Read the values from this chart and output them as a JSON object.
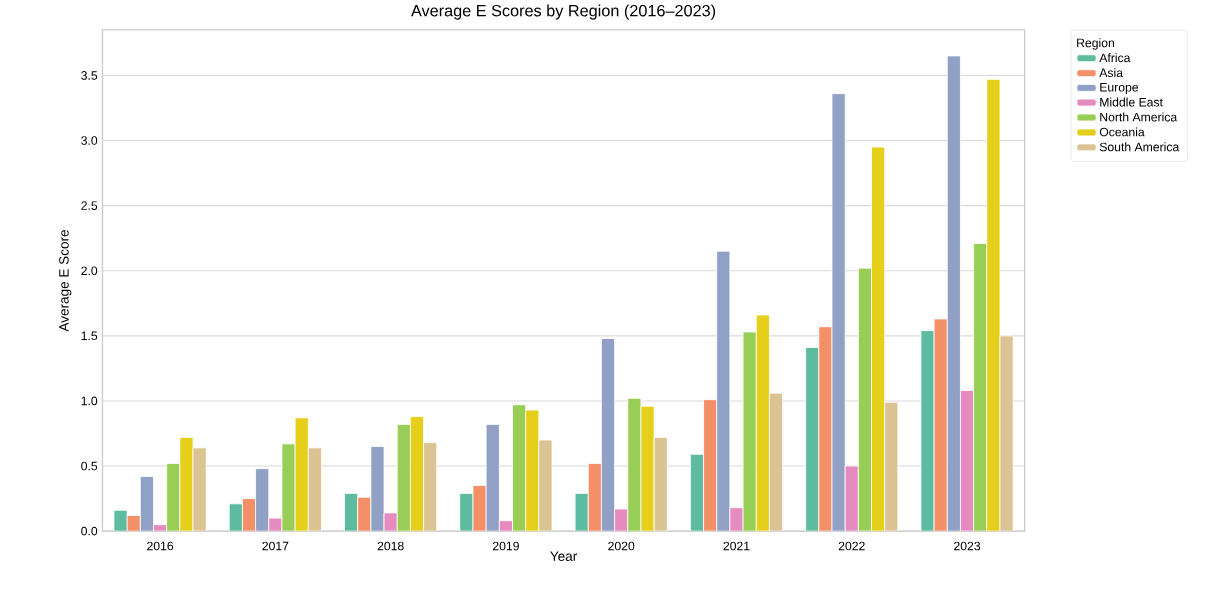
{
  "chart_data": {
    "type": "bar",
    "title": "Average E Scores by Region (2016–2023)",
    "xlabel": "Year",
    "ylabel": "Average E Score",
    "legend_title": "Region",
    "categories": [
      "2016",
      "2017",
      "2018",
      "2019",
      "2020",
      "2021",
      "2022",
      "2023"
    ],
    "series": [
      {
        "name": "Africa",
        "color": "#5dbb9f",
        "values": [
          0.16,
          0.21,
          0.29,
          0.29,
          0.29,
          0.59,
          1.41,
          1.54
        ]
      },
      {
        "name": "Asia",
        "color": "#f49068",
        "values": [
          0.12,
          0.25,
          0.26,
          0.35,
          0.52,
          1.01,
          1.57,
          1.63
        ]
      },
      {
        "name": "Europe",
        "color": "#91a0c5",
        "values": [
          0.42,
          0.48,
          0.65,
          0.82,
          1.48,
          2.15,
          3.36,
          3.65
        ]
      },
      {
        "name": "Middle East",
        "color": "#e68bbf",
        "values": [
          0.05,
          0.1,
          0.14,
          0.08,
          0.17,
          0.18,
          0.5,
          1.08
        ]
      },
      {
        "name": "North America",
        "color": "#98ce55",
        "values": [
          0.52,
          0.67,
          0.82,
          0.97,
          1.02,
          1.53,
          2.02,
          2.21
        ]
      },
      {
        "name": "Oceania",
        "color": "#e5cf1a",
        "values": [
          0.72,
          0.87,
          0.88,
          0.93,
          0.96,
          1.66,
          2.95,
          3.47
        ]
      },
      {
        "name": "South America",
        "color": "#dcc394",
        "values": [
          0.64,
          0.64,
          0.68,
          0.7,
          0.72,
          1.06,
          0.99,
          1.5
        ]
      }
    ],
    "ylim": [
      0,
      3.85
    ],
    "yticks": [
      {
        "value": 0,
        "label": "0.0"
      },
      {
        "value": 0.5,
        "label": "0.5"
      },
      {
        "value": 1,
        "label": "1.0"
      },
      {
        "value": 1.5,
        "label": "1.5"
      },
      {
        "value": 2,
        "label": "2.0"
      },
      {
        "value": 2.5,
        "label": "2.5"
      },
      {
        "value": 3,
        "label": "3.0"
      },
      {
        "value": 3.5,
        "label": "3.5"
      }
    ],
    "grid": "y",
    "legend": "top right"
  }
}
